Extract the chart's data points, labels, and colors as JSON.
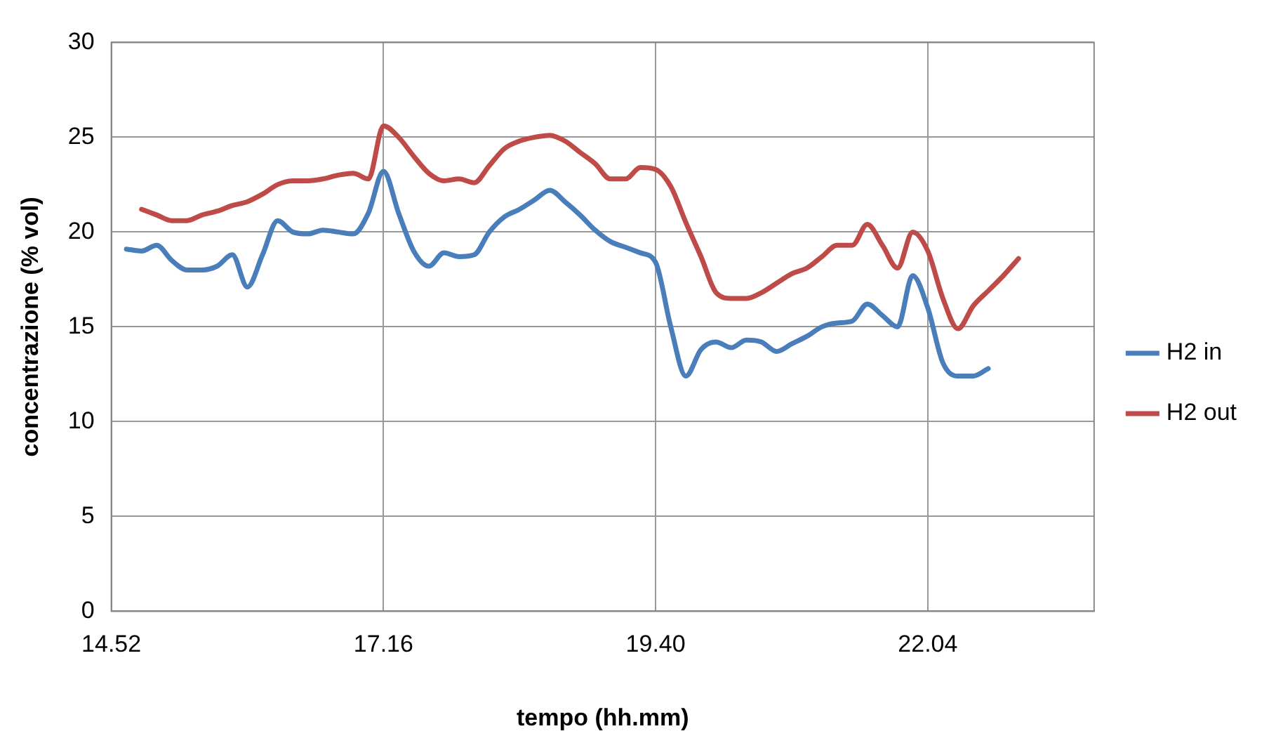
{
  "chart_data": {
    "type": "line",
    "xlabel": "tempo (hh.mm)",
    "ylabel": "concentrazione (% vol)",
    "categories": [
      "14.52",
      null,
      null,
      null,
      null,
      null,
      null,
      null,
      null,
      null,
      null,
      null,
      null,
      null,
      null,
      null,
      null,
      null,
      "17.16",
      null,
      null,
      null,
      null,
      null,
      null,
      null,
      null,
      null,
      null,
      null,
      null,
      null,
      null,
      null,
      null,
      null,
      "19.40",
      null,
      null,
      null,
      null,
      null,
      null,
      null,
      null,
      null,
      null,
      null,
      null,
      null,
      null,
      null,
      null,
      null,
      "22.04",
      null,
      null,
      null,
      null,
      null,
      null,
      null,
      null,
      null,
      null,
      null
    ],
    "ylim": [
      0,
      30
    ],
    "yticks": [
      0,
      5,
      10,
      15,
      20,
      25,
      30
    ],
    "grid": true,
    "legend": "right",
    "marker": "none",
    "line_style": "solid",
    "series": [
      {
        "name": "H2 in",
        "color": "#4a7ebb",
        "values": [
          null,
          19.1,
          19.0,
          19.3,
          18.5,
          18.0,
          18.0,
          18.2,
          18.8,
          17.1,
          18.8,
          20.6,
          20.0,
          19.9,
          20.1,
          20.0,
          19.9,
          21.0,
          23.2,
          21.0,
          19.0,
          18.2,
          18.9,
          18.7,
          18.8,
          20.0,
          20.8,
          21.2,
          21.7,
          22.2,
          21.6,
          20.9,
          20.1,
          19.5,
          19.2,
          18.9,
          18.4,
          15.0,
          12.4,
          13.8,
          14.2,
          13.9,
          14.3,
          14.2,
          13.7,
          14.1,
          14.5,
          15.0,
          15.2,
          15.3,
          16.2,
          15.6,
          15.0,
          17.7,
          16.0,
          13.1,
          12.4,
          12.4,
          12.8,
          null,
          null,
          null,
          null,
          null,
          null,
          null
        ]
      },
      {
        "name": "H2 out",
        "color": "#be4b48",
        "values": [
          null,
          null,
          21.2,
          20.9,
          20.6,
          20.6,
          20.9,
          21.1,
          21.4,
          21.6,
          22.0,
          22.5,
          22.7,
          22.7,
          22.8,
          23.0,
          23.1,
          22.8,
          25.6,
          25.0,
          24.0,
          23.1,
          22.7,
          22.8,
          22.6,
          23.5,
          24.4,
          24.8,
          25.0,
          25.1,
          24.8,
          24.2,
          23.6,
          22.8,
          22.8,
          23.4,
          23.3,
          22.4,
          20.5,
          18.7,
          16.8,
          16.5,
          16.5,
          16.8,
          17.3,
          17.8,
          18.1,
          18.7,
          19.3,
          19.3,
          20.4,
          19.3,
          18.1,
          20.0,
          19.0,
          16.5,
          14.9,
          16.1,
          16.9,
          17.7,
          18.6,
          null,
          null,
          null,
          null,
          null
        ]
      }
    ]
  }
}
